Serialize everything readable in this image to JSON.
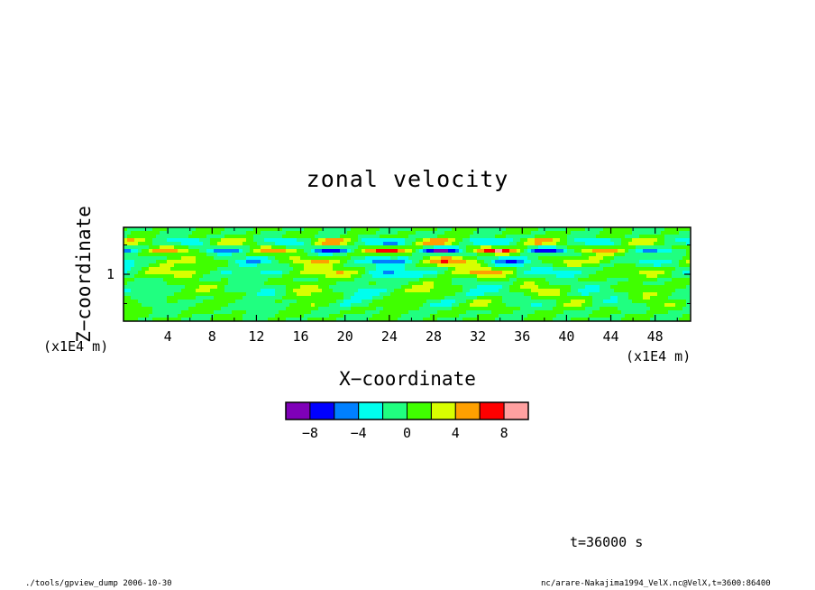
{
  "chart_data": {
    "type": "heatmap",
    "title": "zonal velocity",
    "xlabel": "X−coordinate",
    "ylabel": "Z−coordinate",
    "x_unit": "(x1E4 m)",
    "y_unit": "(x1E4 m)",
    "xlim": [
      0,
      51.2
    ],
    "ylim": [
      0.2,
      1.8
    ],
    "x_ticks": [
      "4",
      "8",
      "12",
      "16",
      "20",
      "24",
      "28",
      "32",
      "36",
      "40",
      "44",
      "48"
    ],
    "x_tick_values": [
      4,
      8,
      12,
      16,
      20,
      24,
      28,
      32,
      36,
      40,
      44,
      48
    ],
    "y_ticks": [
      "1"
    ],
    "y_tick_values": [
      1
    ],
    "colorbar": {
      "boundaries": [
        -10,
        -8,
        -6,
        -4,
        -2,
        0,
        2,
        4,
        6,
        8,
        10
      ],
      "colors": [
        "#7f00b8",
        "#0000ff",
        "#0080ff",
        "#00ffee",
        "#20ff80",
        "#40ff00",
        "#d8ff00",
        "#ffa000",
        "#ff0000",
        "#ffa0a0"
      ],
      "tick_labels": [
        "−8",
        "−4",
        "0",
        "4",
        "8"
      ],
      "tick_values": [
        -8,
        -4,
        0,
        4,
        8
      ]
    },
    "grid": false
  },
  "annotation": {
    "time": "t=36000 s"
  },
  "footer": {
    "left": "./tools/gpview_dump  2006-10-30",
    "right": "nc/arare-Nakajima1994_VelX.nc@VelX,t=3600:86400"
  }
}
